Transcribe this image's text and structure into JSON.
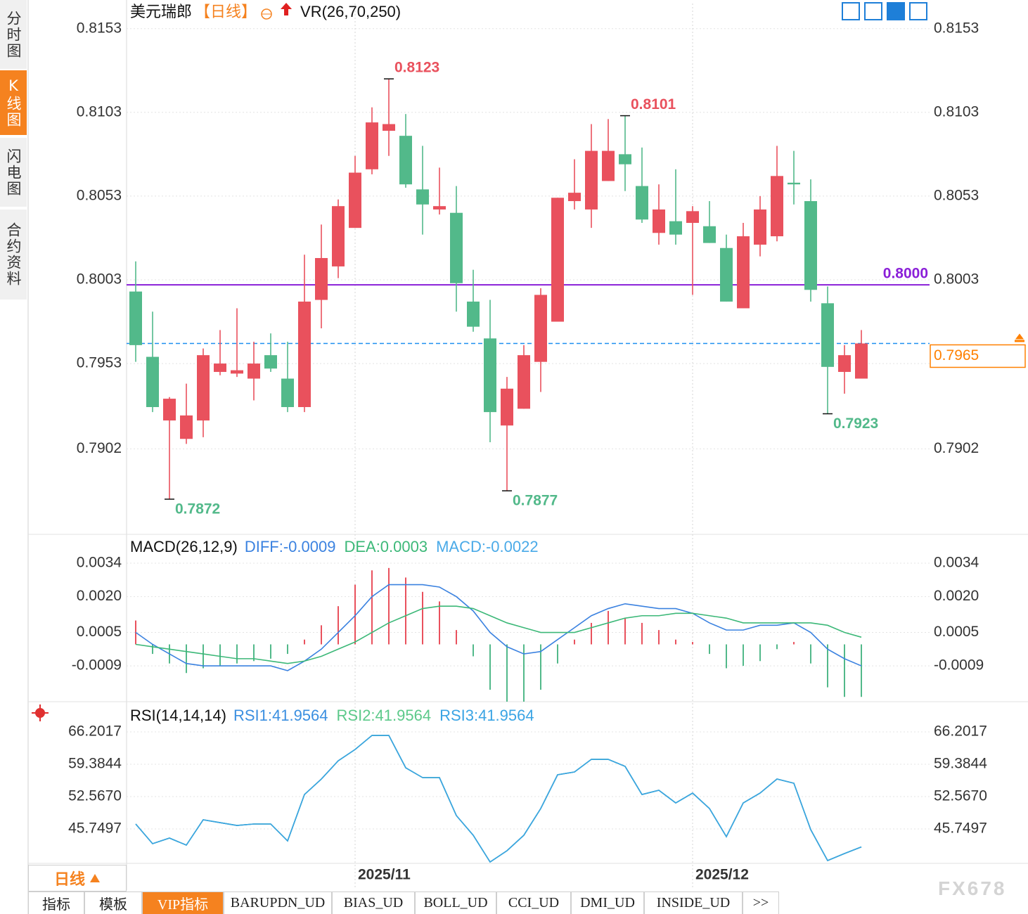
{
  "sidebar": {
    "tabs": [
      "分时图",
      "K线图",
      "闪电图",
      "合约资料"
    ]
  },
  "footer": {
    "period": "日线",
    "tabs": [
      "指标",
      "模板",
      "VIP指标",
      "BARUPDN_UD",
      "BIAS_UD",
      "BOLL_UD",
      "CCI_UD",
      "DMI_UD",
      "INSIDE_UD",
      ">>"
    ],
    "watermark": "FX678"
  },
  "chart_data": [
    {
      "type": "candlestick",
      "title": "美元瑞郎",
      "period": "【日线】",
      "indicator": "VR(26,70,250)",
      "categories": [
        null,
        null,
        null,
        null,
        null,
        null,
        null,
        null,
        null,
        null,
        null,
        null,
        null,
        "2025/11",
        null,
        null,
        null,
        null,
        null,
        null,
        null,
        null,
        null,
        null,
        null,
        null,
        null,
        null,
        null,
        null,
        null,
        null,
        null,
        "2025/12",
        null,
        null,
        null,
        null,
        null,
        null,
        null,
        null,
        null,
        null
      ],
      "open": [
        0.7996,
        0.7957,
        0.7919,
        0.7908,
        0.7919,
        0.7948,
        0.7947,
        0.7944,
        0.7958,
        0.7944,
        0.7927,
        0.7991,
        0.8011,
        0.8034,
        0.8069,
        0.8092,
        0.8089,
        0.8057,
        0.8045,
        0.8043,
        0.799,
        0.7968,
        0.7916,
        0.7926,
        0.7954,
        0.7978,
        0.805,
        0.8045,
        0.8062,
        0.8078,
        0.8059,
        0.8031,
        0.8038,
        0.8037,
        0.8035,
        0.8022,
        0.7986,
        0.8024,
        0.8029,
        0.8061,
        0.805,
        0.7989,
        0.7948,
        0.7944
      ],
      "high": [
        0.8014,
        0.7984,
        0.7933,
        0.7941,
        0.7962,
        0.7973,
        0.7986,
        0.7966,
        0.7971,
        0.7966,
        0.8018,
        0.8036,
        0.8051,
        0.8077,
        0.8106,
        0.8123,
        0.8102,
        0.8083,
        0.807,
        0.8059,
        0.8009,
        0.7991,
        0.7945,
        0.7964,
        0.7998,
        0.8052,
        0.8075,
        0.8096,
        0.8099,
        0.8101,
        0.8082,
        0.806,
        0.8069,
        0.8047,
        0.805,
        0.803,
        0.8037,
        0.8053,
        0.8083,
        0.808,
        0.8063,
        0.7999,
        0.7964,
        0.7973
      ],
      "low": [
        0.7954,
        0.7924,
        0.7872,
        0.7905,
        0.7909,
        0.7946,
        0.7945,
        0.7931,
        0.7948,
        0.7924,
        0.7924,
        0.7974,
        0.8004,
        0.8034,
        0.8066,
        0.8077,
        0.8058,
        0.803,
        0.8042,
        0.7984,
        0.7972,
        0.7906,
        0.7877,
        0.7926,
        0.7936,
        0.7978,
        0.8045,
        0.8034,
        0.8062,
        0.8056,
        0.8037,
        0.8024,
        0.8024,
        0.7994,
        0.8025,
        0.799,
        0.7986,
        0.8017,
        0.8026,
        0.8048,
        0.799,
        0.7923,
        0.7935,
        0.7944
      ],
      "close": [
        0.7964,
        0.7927,
        0.7932,
        0.7922,
        0.7958,
        0.7953,
        0.7949,
        0.7953,
        0.795,
        0.7927,
        0.799,
        0.8016,
        0.8047,
        0.8067,
        0.8097,
        0.8096,
        0.806,
        0.8048,
        0.8047,
        0.8001,
        0.7975,
        0.7924,
        0.7938,
        0.7958,
        0.7994,
        0.8052,
        0.8055,
        0.808,
        0.808,
        0.8072,
        0.8039,
        0.8045,
        0.803,
        0.8044,
        0.8025,
        0.799,
        0.8029,
        0.8045,
        0.8065,
        0.806,
        0.7997,
        0.7951,
        0.7958,
        0.7965
      ],
      "up_color": "#e9515d",
      "down_color": "#52b98a",
      "ylim": [
        0.7851,
        0.8168
      ],
      "yticks": [
        0.8153,
        0.8103,
        0.8053,
        0.8003,
        0.7953,
        0.7902
      ],
      "grid": true,
      "extremes": [
        0.8123,
        0.8101,
        0.7872,
        0.7877,
        0.7923
      ],
      "reference_line": {
        "value": 0.8,
        "label": "0.8000",
        "color": "#8a1fd8"
      },
      "last_price": {
        "value": 0.7965,
        "color": "#1e8ff0",
        "label_color": "#ff8000"
      }
    },
    {
      "type": "macd",
      "title": "MACD(26,12,9)",
      "series": [
        {
          "name": "DIFF:-0.0009",
          "color": "#3b82e0",
          "values": [
            0.0005,
            0,
            -0.0004,
            -0.0008,
            -0.0009,
            -0.0009,
            -0.0009,
            -0.0009,
            -0.0009,
            -0.0011,
            -0.0007,
            -0.0002,
            0.0005,
            0.0012,
            0.002,
            0.0025,
            0.0025,
            0.0025,
            0.0024,
            0.002,
            0.0014,
            0.0005,
            -0.0001,
            -0.0004,
            -0.0003,
            0.0002,
            0.0007,
            0.0012,
            0.0015,
            0.0017,
            0.0016,
            0.0015,
            0.0015,
            0.0013,
            0.0009,
            0.0006,
            0.0006,
            0.0008,
            0.0008,
            0.0009,
            0.0005,
            -0.0002,
            -0.0006,
            -0.0009
          ]
        },
        {
          "name": "DEA:0.0003",
          "color": "#3cb878",
          "values": [
            0,
            -0.0001,
            -0.0002,
            -0.0003,
            -0.0004,
            -0.0005,
            -0.0006,
            -0.0006,
            -0.0007,
            -0.0008,
            -0.0007,
            -0.0005,
            -0.0002,
            0.0001,
            0.0005,
            0.0009,
            0.0012,
            0.0015,
            0.0016,
            0.0016,
            0.0015,
            0.0012,
            0.0009,
            0.0007,
            0.0005,
            0.0005,
            0.0005,
            0.0007,
            0.0009,
            0.0011,
            0.0012,
            0.0012,
            0.0013,
            0.0013,
            0.0012,
            0.0011,
            0.0009,
            0.0009,
            0.0009,
            0.0009,
            0.0009,
            0.0008,
            0.0005,
            0.0003
          ]
        }
      ],
      "histogram": {
        "name": "MACD:-0.0022",
        "color": "#4aaae8",
        "up_color": "#e9515d",
        "down_color": "#52b98a",
        "values": [
          0.001,
          -0.0004,
          -0.0008,
          -0.0012,
          -0.001,
          -0.0009,
          -0.0008,
          -0.0007,
          -0.0006,
          -0.0004,
          0.0002,
          0.0008,
          0.0016,
          0.0025,
          0.0031,
          0.0032,
          0.0028,
          0.0022,
          0.0018,
          0.0006,
          -0.0005,
          -0.0019,
          -0.0024,
          -0.0024,
          -0.0019,
          -0.0008,
          0.0002,
          0.0009,
          0.0014,
          0.0011,
          0.0009,
          0.0006,
          0.0002,
          0.0001,
          -0.0004,
          -0.001,
          -0.0009,
          -0.0007,
          -0.0002,
          0.0001,
          -0.0008,
          -0.0018,
          -0.0022,
          -0.0022
        ]
      },
      "ylim": [
        -0.0024,
        0.00455
      ],
      "yticks": [
        {
          "value": 0.0034,
          "label": "0.0034"
        },
        {
          "value": 0.002,
          "label": "0.0020"
        },
        {
          "value": 0.0005,
          "label": "0.0005"
        },
        {
          "value": -0.0009,
          "label": "-0.0009"
        }
      ],
      "grid": true
    },
    {
      "type": "line",
      "title": "RSI(14,14,14)",
      "series": [
        {
          "name": "RSI1:41.9564",
          "color": "#3b8fe0",
          "values": [
            46.79,
            42.64,
            43.82,
            42.34,
            47.68,
            47.08,
            46.49,
            46.79,
            46.79,
            43.23,
            53.01,
            56.27,
            60.12,
            62.5,
            65.46,
            65.46,
            58.64,
            56.57,
            56.57,
            48.57,
            44.42,
            38.78,
            41.16,
            44.42,
            50.05,
            57.16,
            57.75,
            60.42,
            60.42,
            58.94,
            53.01,
            53.9,
            51.23,
            53.31,
            50.05,
            44.12,
            51.23,
            53.31,
            56.27,
            55.38,
            45.6,
            39.08,
            40.56,
            41.96
          ]
        },
        {
          "name": "RSI2:41.9564",
          "color": "#5cc98a",
          "values": [
            46.79,
            42.64,
            43.82,
            42.34,
            47.68,
            47.08,
            46.49,
            46.79,
            46.79,
            43.23,
            53.01,
            56.27,
            60.12,
            62.5,
            65.46,
            65.46,
            58.64,
            56.57,
            56.57,
            48.57,
            44.42,
            38.78,
            41.16,
            44.42,
            50.05,
            57.16,
            57.75,
            60.42,
            60.42,
            58.94,
            53.01,
            53.9,
            51.23,
            53.31,
            50.05,
            44.12,
            51.23,
            53.31,
            56.27,
            55.38,
            45.6,
            39.08,
            40.56,
            41.96
          ]
        },
        {
          "name": "RSI3:41.9564",
          "color": "#3aa4e4",
          "values": [
            46.79,
            42.64,
            43.82,
            42.34,
            47.68,
            47.08,
            46.49,
            46.79,
            46.79,
            43.23,
            53.01,
            56.27,
            60.12,
            62.5,
            65.46,
            65.46,
            58.64,
            56.57,
            56.57,
            48.57,
            44.42,
            38.78,
            41.16,
            44.42,
            50.05,
            57.16,
            57.75,
            60.42,
            60.42,
            58.94,
            53.01,
            53.9,
            51.23,
            53.31,
            50.05,
            44.12,
            51.23,
            53.31,
            56.27,
            55.38,
            45.6,
            39.08,
            40.56,
            41.96
          ]
        }
      ],
      "ylim": [
        38.49,
        72.28
      ],
      "yticks": [
        66.2017,
        59.3844,
        {
          "value": 52.567,
          "label": "52.5670"
        },
        45.7497
      ],
      "grid": true
    }
  ]
}
